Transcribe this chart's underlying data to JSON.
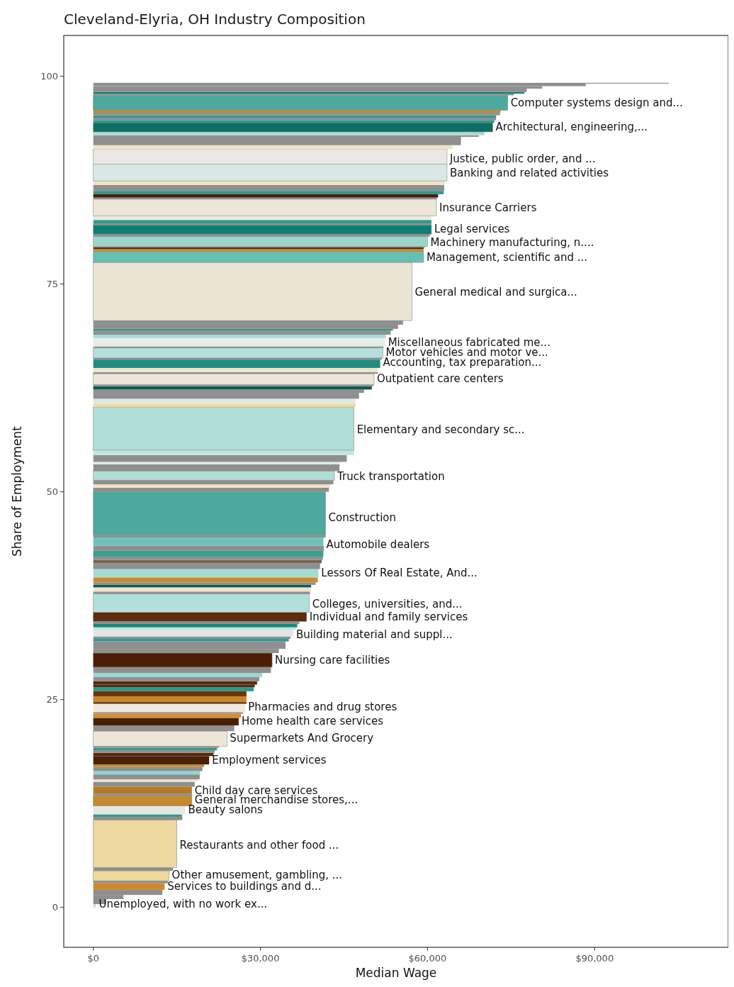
{
  "chart_data": {
    "type": "histogram",
    "orientation": "horizontal",
    "title": "Cleveland-Elyria, OH Industry Composition",
    "xlabel": "Median Wage",
    "ylabel": "Share of Employment",
    "bins": [
      0,
      0.4,
      1.0,
      1.5,
      2.1,
      2.9,
      3.2,
      4.4,
      4.8,
      10.5,
      10.9,
      11.2,
      12.2,
      13.4,
      13.7,
      14.5,
      15.1,
      15.4,
      16.0,
      16.4,
      16.9,
      17.2,
      18.2,
      18.6,
      18.9,
      19.2,
      19.4,
      21.2,
      21.9,
      22.8,
      23.3,
      23.5,
      24.5,
      24.7,
      25.4,
      26.0,
      26.5,
      26.8,
      27.2,
      27.7,
      28.2,
      28.9,
      30.6,
      31.1,
      32.0,
      32.3,
      32.6,
      33.4,
      33.7,
      34.1,
      34.4,
      35.5,
      37.7,
      38.0,
      38.5,
      38.8,
      39.1,
      39.7,
      40.7,
      41.4,
      41.8,
      42.2,
      42.9,
      43.5,
      44.5,
      44.8,
      50.0,
      50.5,
      50.9,
      51.4,
      52.5,
      53.3,
      53.6,
      54.4,
      55.0,
      60.2,
      60.6,
      61.2,
      61.9,
      62.3,
      62.7,
      62.9,
      64.2,
      64.4,
      64.9,
      65.9,
      66.1,
      67.3,
      67.5,
      68.5,
      68.9,
      69.4,
      69.6,
      70.1,
      70.6,
      77.6,
      78.9,
      79.2,
      79.4,
      79.5,
      80.7,
      81.0,
      82.1,
      82.3,
      82.7,
      83.2,
      85.2,
      85.4,
      85.8,
      86.2,
      86.9,
      87.4,
      89.4,
      91.2,
      91.7,
      92.7,
      92.9,
      93.3,
      94.4,
      94.7,
      95.0,
      95.3,
      95.6,
      95.9,
      97.7,
      97.9,
      98.1,
      98.5,
      98.8,
      99.1,
      99.2
    ],
    "values": [
      500,
      2300,
      5400,
      12400,
      12800,
      13400,
      13600,
      14300,
      15000,
      16000,
      15900,
      16500,
      17700,
      17700,
      17700,
      18200,
      18600,
      19100,
      19200,
      19600,
      19900,
      20800,
      21600,
      21800,
      22200,
      22500,
      24000,
      25300,
      26100,
      26500,
      26900,
      27300,
      27500,
      27500,
      27500,
      28800,
      29000,
      29400,
      29800,
      30300,
      31900,
      32100,
      33300,
      34500,
      35100,
      35400,
      35900,
      36400,
      36600,
      37000,
      38300,
      38800,
      38900,
      39100,
      39100,
      39900,
      40300,
      40400,
      40700,
      41000,
      41200,
      41300,
      41400,
      41300,
      41700,
      41700,
      42300,
      42500,
      43100,
      43300,
      44200,
      44200,
      45500,
      46800,
      46800,
      47100,
      47100,
      47700,
      48600,
      50000,
      50300,
      50400,
      51100,
      51100,
      51500,
      51800,
      52000,
      52100,
      52400,
      52500,
      53400,
      53800,
      54700,
      55600,
      57200,
      59300,
      59300,
      59300,
      59600,
      60000,
      60400,
      60700,
      60700,
      60700,
      60700,
      61600,
      61700,
      61900,
      62900,
      63000,
      63100,
      63500,
      63500,
      64500,
      66000,
      69200,
      70200,
      71700,
      72000,
      72300,
      72300,
      73000,
      73100,
      74400,
      75500,
      77400,
      77800,
      80600,
      88400,
      103300
    ],
    "colors": [
      "#d9d9d9",
      "#8f8f8f",
      "#8f8f8f",
      "#8f8f8f",
      "#cd8b2e",
      "#8f8f8f",
      "#efd99a",
      "#8f8f8f",
      "#ecd9a0",
      "#8f8f8f",
      "#2b9a8c",
      "#e8e6e3",
      "#c68a2e",
      "#8f8f8f",
      "#b87a1f",
      "#8f8f8f",
      "#efe3cc",
      "#8f8f8f",
      "#8fd6cc",
      "#8f8f8f",
      "#c8862c",
      "#4a2108",
      "#5a2a0e",
      "#8f8f8f",
      "#2b9a8c",
      "#8f8f8f",
      "#ede6d8",
      "#8f8f8f",
      "#4a1f05",
      "#d38f33",
      "#8f8f8f",
      "#efe9df",
      "#5a2a0e",
      "#c8862c",
      "#6b3510",
      "#2b9a8c",
      "#5a2a0e",
      "#5a2a0e",
      "#8f8f8f",
      "#9ad8cf",
      "#8f8f8f",
      "#4a1f05",
      "#8f8f8f",
      "#8f8f8f",
      "#2b9a8c",
      "#8f8f8f",
      "#dfe6e3",
      "#bfe3dd",
      "#138a7a",
      "#8f8f8f",
      "#5e2c0b",
      "#b3dfdb",
      "#8f8f8f",
      "#f2e3c8",
      "#0d5c55",
      "#8f8f8f",
      "#cf8a30",
      "#a4dcd5",
      "#8f8f8f",
      "#7a6450",
      "#8f8f8f",
      "#3a9e92",
      "#8f8f8f",
      "#6cc4b8",
      "#8f8f8f",
      "#4da89d",
      "#8f8f8f",
      "#f2e0c4",
      "#8f8f8f",
      "#b0ddd6",
      "#8f8f8f",
      "#dfe8e6",
      "#8f8f8f",
      "#c0e6e0",
      "#b0ddd8",
      "#f2d99a",
      "#dfe8e6",
      "#8f8f8f",
      "#8f8f8f",
      "#0d5c55",
      "#8f8f8f",
      "#ede6d8",
      "#8f8f8f",
      "#f0e4cc",
      "#1f8c7f",
      "#8f8f8f",
      "#b5e0da",
      "#8f8f8f",
      "#e6edeb",
      "#a6dcd4",
      "#8f8f8f",
      "#2b9a8c",
      "#8f8f8f",
      "#8f8f8f",
      "#ece5d5",
      "#66bfb3",
      "#c8862c",
      "#5a2a0e",
      "#8f8f8f",
      "#98d8cc",
      "#8f8f8f",
      "#0d7f72",
      "#8f8f8f",
      "#2b9a8c",
      "#efe8dc",
      "#ede6d8",
      "#8f8f8f",
      "#4a1f05",
      "#2b9a8c",
      "#8f8f8f",
      "#f2e3c8",
      "#d9e8e5",
      "#eae8e5",
      "#f2e3c8",
      "#8f8f8f",
      "#8f8f8f",
      "#a6dcd4",
      "#0d6e62",
      "#2b9a8c",
      "#8f8f8f",
      "#2b9a8c",
      "#8f8f8f",
      "#c8862c",
      "#4da89d",
      "#8f8f8f",
      "#0d7f72",
      "#8f8f8f",
      "#8f8f8f",
      "#8f8f8f",
      "#8f8f8f"
    ],
    "xlim": [
      -5300,
      114000
    ],
    "ylim": [
      -4.8,
      104.9
    ],
    "xticks": [
      {
        "value": 0,
        "label": "$0"
      },
      {
        "value": 30000,
        "label": "$30,000"
      },
      {
        "value": 60000,
        "label": "$60,000"
      },
      {
        "value": 90000,
        "label": "$90,000"
      }
    ],
    "yticks": [
      0,
      25,
      50,
      75,
      100
    ],
    "grid": false,
    "annotations": [
      {
        "text": "Computer systems design and...",
        "x": 74400,
        "y": 96.8
      },
      {
        "text": "Architectural, engineering,...",
        "x": 71700,
        "y": 93.9
      },
      {
        "text": "Justice, public order, and ...",
        "x": 63500,
        "y": 90.1
      },
      {
        "text": "Banking and related activities",
        "x": 63500,
        "y": 88.4
      },
      {
        "text": "Insurance Carriers",
        "x": 61600,
        "y": 84.2
      },
      {
        "text": "Legal services",
        "x": 60700,
        "y": 81.6
      },
      {
        "text": "Machinery manufacturing, n....",
        "x": 60000,
        "y": 80.0
      },
      {
        "text": "Management, scientific and ...",
        "x": 59300,
        "y": 78.2
      },
      {
        "text": "General medical and surgica...",
        "x": 57200,
        "y": 74.0
      },
      {
        "text": "Miscellaneous fabricated me...",
        "x": 52400,
        "y": 68.0
      },
      {
        "text": "Motor vehicles and motor ve...",
        "x": 52000,
        "y": 66.8
      },
      {
        "text": "Accounting, tax preparation...",
        "x": 51500,
        "y": 65.6
      },
      {
        "text": "Outpatient care centers",
        "x": 50400,
        "y": 63.6
      },
      {
        "text": "Elementary and secondary sc...",
        "x": 46800,
        "y": 57.5
      },
      {
        "text": "Truck transportation",
        "x": 43300,
        "y": 51.9
      },
      {
        "text": "Construction",
        "x": 41700,
        "y": 46.9
      },
      {
        "text": "Automobile dealers",
        "x": 41300,
        "y": 43.7
      },
      {
        "text": "Lessors Of Real Estate, And...",
        "x": 40400,
        "y": 40.3
      },
      {
        "text": "Colleges, universities, and...",
        "x": 38800,
        "y": 36.5
      },
      {
        "text": "Individual and family services",
        "x": 38300,
        "y": 35.0
      },
      {
        "text": "Building material and suppl...",
        "x": 35900,
        "y": 32.8
      },
      {
        "text": "Nursing care facilities",
        "x": 32100,
        "y": 29.8
      },
      {
        "text": "Pharmacies and drug stores",
        "x": 27300,
        "y": 24.1
      },
      {
        "text": "Home health care services",
        "x": 26100,
        "y": 22.4
      },
      {
        "text": "Supermarkets And Grocery",
        "x": 24000,
        "y": 20.4
      },
      {
        "text": "Employment services",
        "x": 20800,
        "y": 17.7
      },
      {
        "text": "Child day care services",
        "x": 17700,
        "y": 14.1
      },
      {
        "text": "General merchandise stores,...",
        "x": 17700,
        "y": 13.0
      },
      {
        "text": "Beauty salons",
        "x": 16500,
        "y": 11.8
      },
      {
        "text": "Restaurants and other food ...",
        "x": 15000,
        "y": 7.5
      },
      {
        "text": "Other amusement, gambling, ...",
        "x": 13600,
        "y": 3.9
      },
      {
        "text": "Services to buildings and d...",
        "x": 12800,
        "y": 2.6
      },
      {
        "text": "Unemployed, with no work ex...",
        "x": 500,
        "y": 0.4
      }
    ]
  }
}
